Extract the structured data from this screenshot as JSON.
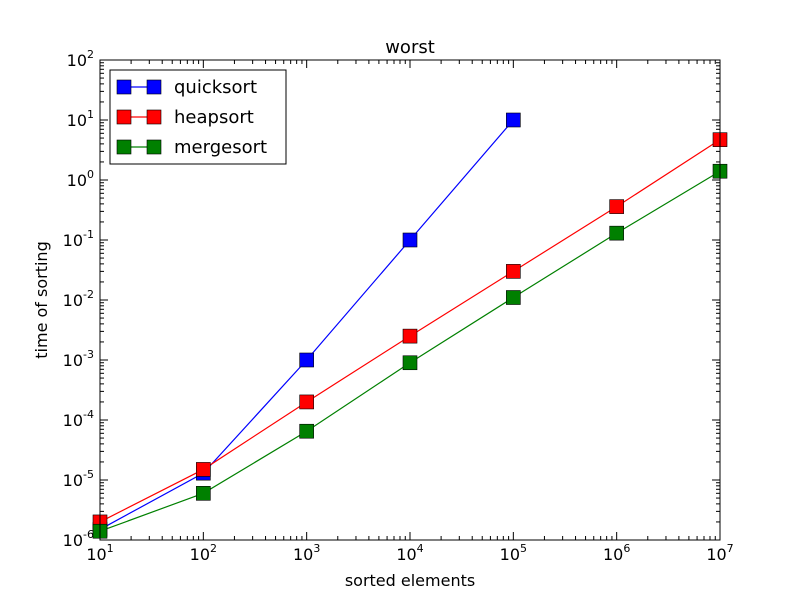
{
  "chart_data": {
    "type": "line",
    "title": "worst",
    "xlabel": "sorted elements",
    "ylabel": "time of sorting",
    "xscale": "log",
    "yscale": "log",
    "xlim": [
      10,
      10000000
    ],
    "ylim": [
      1e-06,
      100
    ],
    "x_ticks": [
      {
        "value": 10,
        "base": "10",
        "exp": "1"
      },
      {
        "value": 100,
        "base": "10",
        "exp": "2"
      },
      {
        "value": 1000,
        "base": "10",
        "exp": "3"
      },
      {
        "value": 10000,
        "base": "10",
        "exp": "4"
      },
      {
        "value": 100000,
        "base": "10",
        "exp": "5"
      },
      {
        "value": 1000000,
        "base": "10",
        "exp": "6"
      },
      {
        "value": 10000000,
        "base": "10",
        "exp": "7"
      }
    ],
    "y_ticks": [
      {
        "value": 1e-06,
        "base": "10",
        "exp": "-6"
      },
      {
        "value": 1e-05,
        "base": "10",
        "exp": "-5"
      },
      {
        "value": 0.0001,
        "base": "10",
        "exp": "-4"
      },
      {
        "value": 0.001,
        "base": "10",
        "exp": "-3"
      },
      {
        "value": 0.01,
        "base": "10",
        "exp": "-2"
      },
      {
        "value": 0.1,
        "base": "10",
        "exp": "-1"
      },
      {
        "value": 1,
        "base": "10",
        "exp": "0"
      },
      {
        "value": 10,
        "base": "10",
        "exp": "1"
      },
      {
        "value": 100,
        "base": "10",
        "exp": "2"
      }
    ],
    "grid": false,
    "legend": "top-left",
    "series": [
      {
        "name": "quicksort",
        "color": "#0000ff",
        "marker": "square",
        "x": [
          10,
          100,
          1000,
          10000,
          100000
        ],
        "y": [
          1.5e-06,
          1.3e-05,
          0.001,
          0.1,
          10
        ]
      },
      {
        "name": "heapsort",
        "color": "#ff0000",
        "marker": "square",
        "x": [
          10,
          100,
          1000,
          10000,
          100000,
          1000000,
          10000000
        ],
        "y": [
          2e-06,
          1.5e-05,
          0.0002,
          0.0025,
          0.03,
          0.36,
          4.7
        ]
      },
      {
        "name": "mergesort",
        "color": "#008000",
        "marker": "square",
        "x": [
          10,
          100,
          1000,
          10000,
          100000,
          1000000,
          10000000
        ],
        "y": [
          1.4e-06,
          6e-06,
          6.5e-05,
          0.0009,
          0.011,
          0.13,
          1.4
        ]
      }
    ]
  }
}
